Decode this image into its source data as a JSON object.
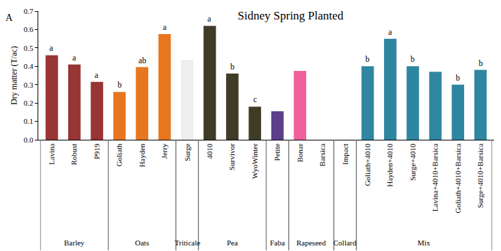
{
  "chart_data": {
    "type": "bar",
    "title": "Sidney Spring Planted",
    "panel_label": "A",
    "y_label": "Dry matter (T/ac)",
    "categories": [
      "Lavina",
      "Robust",
      "P919",
      "Goliath",
      "Hayden",
      "Jerry",
      "Surge",
      "4010",
      "Survivor",
      "WyoWinter",
      "Petite",
      "Bonar",
      "Barsica",
      "Impact",
      "Goliath+4010",
      "Hayden+4010",
      "Surge+4010",
      "Lavina+4010+Barsica",
      "Goliath+4010+Barsica",
      "Surge+4010+Barsica"
    ],
    "values": [
      0.46,
      0.41,
      0.315,
      0.26,
      0.395,
      0.575,
      0.435,
      0.62,
      0.36,
      0.18,
      0.155,
      0.375,
      null,
      null,
      0.4,
      0.55,
      0.4,
      0.37,
      0.3,
      0.38
    ],
    "colors": [
      "#983535",
      "#983535",
      "#983535",
      "#e8761e",
      "#e8761e",
      "#e8761e",
      "#eeeeee",
      "#3f3b27",
      "#3f3b27",
      "#3f3b27",
      "#5c3f8a",
      "#f0609a",
      "#f0609a",
      "#f0609a",
      "#2f86a0",
      "#2f86a0",
      "#2f86a0",
      "#2f86a0",
      "#2f86a0",
      "#2f86a0"
    ],
    "letters": [
      "a",
      "a",
      "a",
      "b",
      "ab",
      "a",
      null,
      "a",
      "b",
      "c",
      null,
      null,
      null,
      null,
      "b",
      "a",
      "b",
      null,
      "b",
      "b"
    ],
    "groups": [
      {
        "label": "Barley",
        "members": [
          "Lavina",
          "Robust",
          "P919"
        ]
      },
      {
        "label": "Oats",
        "members": [
          "Goliath",
          "Hayden",
          "Jerry"
        ]
      },
      {
        "label": "Triticale",
        "members": [
          "Surge"
        ]
      },
      {
        "label": "Pea",
        "members": [
          "4010",
          "Survivor",
          "WyoWinter"
        ]
      },
      {
        "label": "Faba",
        "members": [
          "Petite"
        ]
      },
      {
        "label": "Rapeseed",
        "members": [
          "Bonar",
          "Barsica"
        ]
      },
      {
        "label": "Collard",
        "members": [
          "Impact"
        ]
      },
      {
        "label": "Mix",
        "members": [
          "Goliath+4010",
          "Hayden+4010",
          "Surge+4010",
          "Lavina+4010+Barsica",
          "Goliath+4010+Barsica",
          "Surge+4010+Barsica"
        ]
      }
    ],
    "ylim": [
      0,
      0.7
    ],
    "yticks": [
      {
        "value": 0,
        "label": "0.0"
      },
      0.1,
      0.2,
      0.3,
      0.4,
      0.5,
      0.6,
      0.7
    ],
    "grid": false
  }
}
